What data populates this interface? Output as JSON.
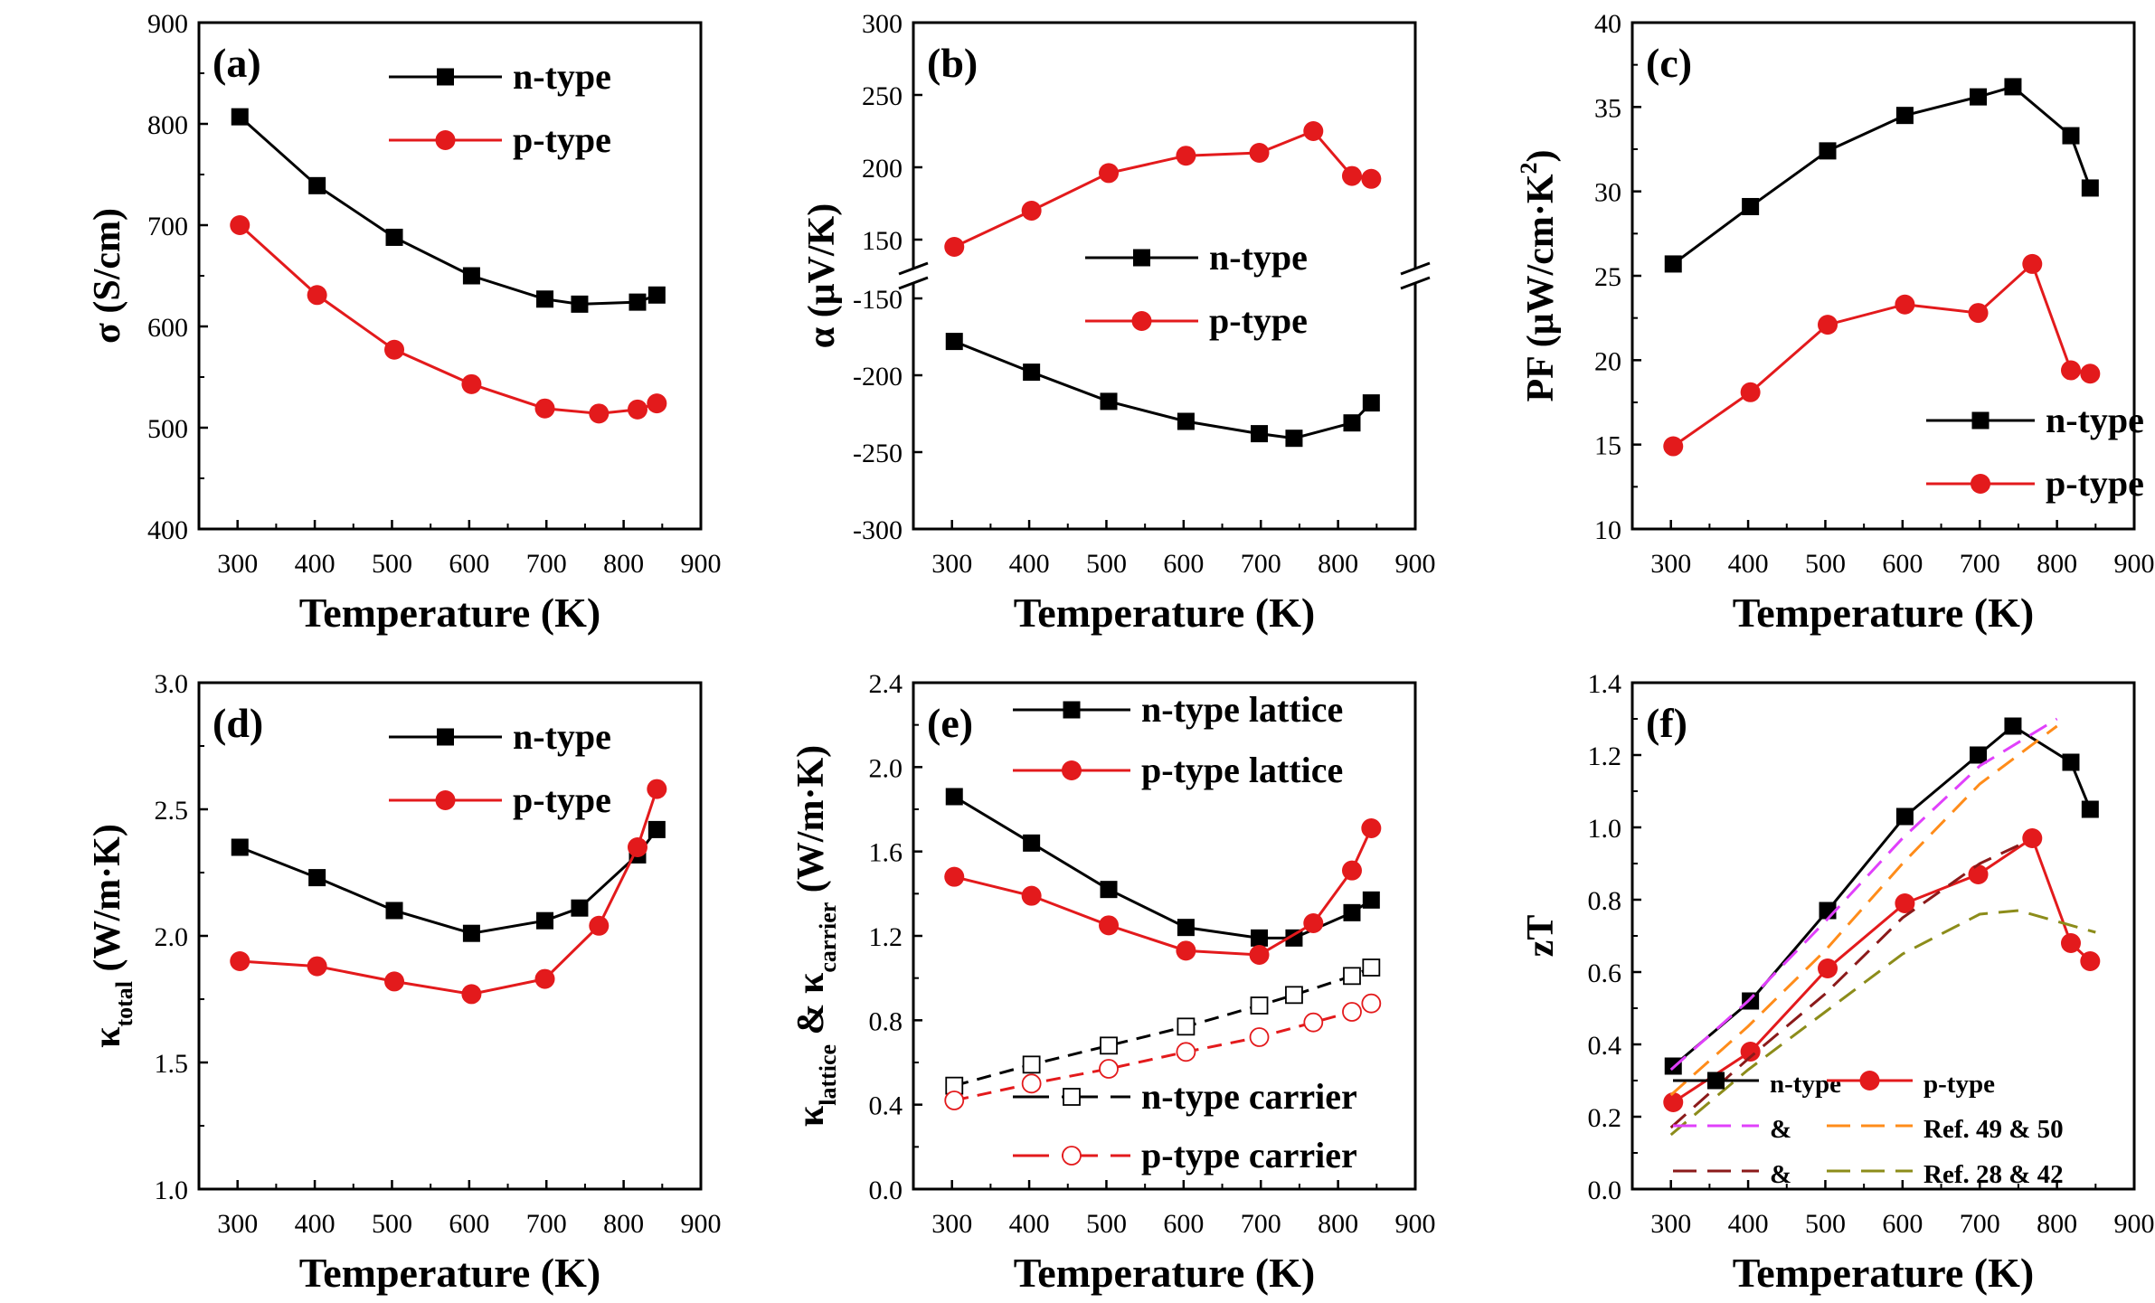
{
  "chart_data": [
    {
      "id": "a",
      "type": "line",
      "panel_label": "(a)",
      "xlabel": "Temperature (K)",
      "ylabel": "σ (S/cm)",
      "xlim": [
        250,
        900
      ],
      "ylim": [
        400,
        900
      ],
      "xticks": [
        300,
        400,
        500,
        600,
        700,
        800,
        900
      ],
      "yticks": [
        400,
        500,
        600,
        700,
        800,
        900
      ],
      "legend": {
        "position": "top-right",
        "size": "large"
      },
      "series": [
        {
          "name": "n-type",
          "color": "#000000",
          "marker": "square",
          "dash": false,
          "x": [
            303,
            403,
            503,
            603,
            698,
            743,
            818,
            843
          ],
          "y": [
            807,
            739,
            688,
            650,
            627,
            622,
            624,
            631
          ]
        },
        {
          "name": "p-type",
          "color": "#e31a1c",
          "marker": "circle",
          "dash": false,
          "x": [
            303,
            403,
            503,
            603,
            698,
            768,
            818,
            843
          ],
          "y": [
            700,
            631,
            577,
            543,
            519,
            514,
            518,
            524
          ]
        }
      ]
    },
    {
      "id": "b",
      "type": "line",
      "panel_label": "(b)",
      "xlabel": "Temperature (K)",
      "ylabel": "α (μV/K)",
      "xlim": [
        250,
        900
      ],
      "broken_axis": true,
      "upper": {
        "ylim": [
          130,
          300
        ],
        "yticks": [
          150,
          200,
          250,
          300
        ]
      },
      "lower": {
        "ylim": [
          -300,
          -140
        ],
        "yticks": [
          -300,
          -250,
          -200,
          -150
        ]
      },
      "xticks": [
        300,
        400,
        500,
        600,
        700,
        800,
        900
      ],
      "legend": {
        "position": "middle-right",
        "size": "large"
      },
      "series": [
        {
          "name": "n-type",
          "color": "#000000",
          "marker": "square",
          "dash": false,
          "segment": "lower",
          "x": [
            303,
            403,
            503,
            603,
            698,
            743,
            818,
            843
          ],
          "y": [
            -178,
            -198,
            -217,
            -230,
            -238,
            -241,
            -231,
            -218
          ]
        },
        {
          "name": "p-type",
          "color": "#e31a1c",
          "marker": "circle",
          "dash": false,
          "segment": "upper",
          "x": [
            303,
            403,
            503,
            603,
            698,
            768,
            818,
            843
          ],
          "y": [
            145,
            170,
            196,
            208,
            210,
            225,
            194,
            192
          ]
        }
      ]
    },
    {
      "id": "c",
      "type": "line",
      "panel_label": "(c)",
      "xlabel": "Temperature (K)",
      "ylabel": "PF (μW/cm·K",
      "ylabel_sup": "2",
      "ylabel_end": ")",
      "xlim": [
        250,
        900
      ],
      "ylim": [
        10,
        40
      ],
      "xticks": [
        300,
        400,
        500,
        600,
        700,
        800,
        900
      ],
      "yticks": [
        10,
        15,
        20,
        25,
        30,
        35,
        40
      ],
      "legend": {
        "position": "bottom-right",
        "size": "large"
      },
      "series": [
        {
          "name": "n-type",
          "color": "#000000",
          "marker": "square",
          "dash": false,
          "x": [
            303,
            403,
            503,
            603,
            698,
            743,
            818,
            843
          ],
          "y": [
            25.7,
            29.1,
            32.4,
            34.5,
            35.6,
            36.2,
            33.3,
            30.2
          ]
        },
        {
          "name": "p-type",
          "color": "#e31a1c",
          "marker": "circle",
          "dash": false,
          "x": [
            303,
            403,
            503,
            603,
            698,
            768,
            818,
            843
          ],
          "y": [
            14.9,
            18.1,
            22.1,
            23.3,
            22.8,
            25.7,
            19.4,
            19.2
          ]
        }
      ]
    },
    {
      "id": "d",
      "type": "line",
      "panel_label": "(d)",
      "xlabel": "Temperature (K)",
      "ylabel": "κ",
      "ylabel_sub": "total",
      "ylabel_end": " (W/m·K)",
      "xlim": [
        250,
        900
      ],
      "ylim": [
        1.0,
        3.0
      ],
      "xticks": [
        300,
        400,
        500,
        600,
        700,
        800,
        900
      ],
      "yticks": [
        1.0,
        1.5,
        2.0,
        2.5,
        3.0
      ],
      "ytick_labels": [
        "1.0",
        "1.5",
        "2.0",
        "2.5",
        "3.0"
      ],
      "legend": {
        "position": "top-right",
        "size": "large"
      },
      "series": [
        {
          "name": "n-type",
          "color": "#000000",
          "marker": "square",
          "dash": false,
          "x": [
            303,
            403,
            503,
            603,
            698,
            743,
            818,
            843
          ],
          "y": [
            2.35,
            2.23,
            2.1,
            2.01,
            2.06,
            2.11,
            2.32,
            2.42
          ]
        },
        {
          "name": "p-type",
          "color": "#e31a1c",
          "marker": "circle",
          "dash": false,
          "x": [
            303,
            403,
            503,
            603,
            698,
            768,
            818,
            843
          ],
          "y": [
            1.9,
            1.88,
            1.82,
            1.77,
            1.83,
            2.04,
            2.35,
            2.58
          ]
        }
      ]
    },
    {
      "id": "e",
      "type": "line",
      "panel_label": "(e)",
      "xlabel": "Temperature (K)",
      "ylabel_parts": [
        "κ",
        "lattice",
        " & κ",
        "carrier",
        " (W/m·K)"
      ],
      "xlim": [
        250,
        900
      ],
      "ylim": [
        0.0,
        2.4
      ],
      "xticks": [
        300,
        400,
        500,
        600,
        700,
        800,
        900
      ],
      "yticks": [
        0.0,
        0.4,
        0.8,
        1.2,
        1.6,
        2.0,
        2.4
      ],
      "ytick_labels": [
        "0.0",
        "0.4",
        "0.8",
        "1.2",
        "1.6",
        "2.0",
        "2.4"
      ],
      "legend": {
        "position": "top-right and bottom-right",
        "size": "medium"
      },
      "series": [
        {
          "name": "n-type lattice",
          "color": "#000000",
          "marker": "square",
          "dash": false,
          "legend_group": "top",
          "x": [
            303,
            403,
            503,
            603,
            698,
            743,
            818,
            843
          ],
          "y": [
            1.86,
            1.64,
            1.42,
            1.24,
            1.19,
            1.19,
            1.31,
            1.37
          ]
        },
        {
          "name": "p-type lattice",
          "color": "#e31a1c",
          "marker": "circle",
          "dash": false,
          "legend_group": "top",
          "x": [
            303,
            403,
            503,
            603,
            698,
            768,
            818,
            843
          ],
          "y": [
            1.48,
            1.39,
            1.25,
            1.13,
            1.11,
            1.26,
            1.51,
            1.71
          ]
        },
        {
          "name": "n-type carrier",
          "color": "#000000",
          "marker": "open-square",
          "dash": true,
          "legend_group": "bottom",
          "x": [
            303,
            403,
            503,
            603,
            698,
            743,
            818,
            843
          ],
          "y": [
            0.49,
            0.59,
            0.68,
            0.77,
            0.87,
            0.92,
            1.01,
            1.05
          ]
        },
        {
          "name": "p-type carrier",
          "color": "#e31a1c",
          "marker": "open-circle",
          "dash": true,
          "legend_group": "bottom",
          "x": [
            303,
            403,
            503,
            603,
            698,
            768,
            818,
            843
          ],
          "y": [
            0.42,
            0.5,
            0.57,
            0.65,
            0.72,
            0.79,
            0.84,
            0.88
          ]
        }
      ]
    },
    {
      "id": "f",
      "type": "line",
      "panel_label": "(f)",
      "xlabel": "Temperature (K)",
      "ylabel": "zT",
      "xlim": [
        250,
        900
      ],
      "ylim": [
        0.0,
        1.4
      ],
      "xticks": [
        300,
        400,
        500,
        600,
        700,
        800,
        900
      ],
      "yticks": [
        0.0,
        0.2,
        0.4,
        0.6,
        0.8,
        1.0,
        1.2,
        1.4
      ],
      "ytick_labels": [
        "0.0",
        "0.2",
        "0.4",
        "0.6",
        "0.8",
        "1.0",
        "1.2",
        "1.4"
      ],
      "legend": {
        "position": "bottom-right",
        "size": "small"
      },
      "series": [
        {
          "name": "n-type",
          "color": "#000000",
          "marker": "square",
          "dash": false,
          "x": [
            303,
            403,
            503,
            603,
            698,
            743,
            818,
            843
          ],
          "y": [
            0.34,
            0.52,
            0.77,
            1.03,
            1.2,
            1.28,
            1.18,
            1.05
          ]
        },
        {
          "name": "p-type",
          "color": "#e31a1c",
          "marker": "circle",
          "dash": false,
          "x": [
            303,
            403,
            503,
            603,
            698,
            768,
            818,
            843
          ],
          "y": [
            0.24,
            0.38,
            0.61,
            0.79,
            0.87,
            0.97,
            0.68,
            0.63
          ]
        },
        {
          "name": "Ref. 49",
          "color": "#e040fb",
          "marker": "none",
          "dash": true,
          "x": [
            300,
            400,
            500,
            600,
            700,
            800
          ],
          "y": [
            0.33,
            0.52,
            0.74,
            0.97,
            1.17,
            1.3
          ]
        },
        {
          "name": "Ref. 50",
          "color": "#ff8c1a",
          "marker": "none",
          "dash": true,
          "x": [
            300,
            400,
            500,
            600,
            700,
            800
          ],
          "y": [
            0.26,
            0.45,
            0.66,
            0.9,
            1.12,
            1.28
          ]
        },
        {
          "name": "Ref. 28",
          "color": "#8b1a1a",
          "marker": "none",
          "dash": true,
          "x": [
            300,
            400,
            500,
            600,
            700,
            750
          ],
          "y": [
            0.17,
            0.36,
            0.54,
            0.75,
            0.9,
            0.95
          ]
        },
        {
          "name": "Ref. 42",
          "color": "#8c8c1a",
          "marker": "none",
          "dash": true,
          "x": [
            300,
            400,
            500,
            600,
            700,
            750,
            850
          ],
          "y": [
            0.15,
            0.33,
            0.49,
            0.65,
            0.76,
            0.77,
            0.71
          ]
        }
      ],
      "legend_rows": [
        {
          "items": [
            {
              "series": "n-type",
              "label": "n-type"
            },
            {
              "series": "p-type",
              "label": "p-type"
            }
          ]
        },
        {
          "items": [
            {
              "series": "Ref. 49",
              "label": "&"
            },
            {
              "series": "Ref. 50",
              "label": "Ref. 49 & 50"
            }
          ]
        },
        {
          "items": [
            {
              "series": "Ref. 28",
              "label": "&"
            },
            {
              "series": "Ref. 42",
              "label": "Ref. 28 & 42"
            }
          ]
        }
      ]
    }
  ]
}
